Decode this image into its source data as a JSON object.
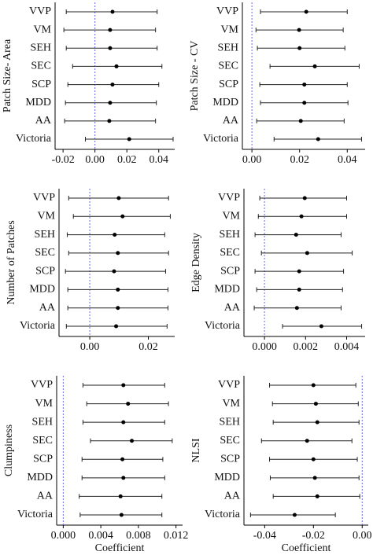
{
  "chart_data": [
    {
      "type": "dot",
      "ylabel": "Patch Size- Area",
      "categories": [
        "VVP",
        "VM",
        "SEH",
        "SEC",
        "SCP",
        "MDD",
        "AA",
        "Victoria"
      ],
      "values": [
        0.011,
        0.0095,
        0.0095,
        0.0135,
        0.011,
        0.0095,
        0.009,
        0.0215
      ],
      "lower": [
        -0.018,
        -0.0195,
        -0.018,
        -0.014,
        -0.017,
        -0.0185,
        -0.019,
        -0.006
      ],
      "upper": [
        0.039,
        0.038,
        0.039,
        0.042,
        0.04,
        0.0385,
        0.038,
        0.049
      ],
      "xlim": [
        -0.025,
        0.05
      ],
      "xticks": [
        -0.02,
        {
          "value": 0,
          "label": "0.00"
        },
        0.02,
        0.04
      ],
      "refline": 0,
      "refline_color": "#6a6ae0",
      "color": "#000000"
    },
    {
      "type": "dot",
      "ylabel": "Patch Size - CV",
      "categories": [
        "VVP",
        "VM",
        "SEH",
        "SEC",
        "SCP",
        "MDD",
        "AA",
        "Victoria"
      ],
      "values": [
        0.0228,
        0.0198,
        0.02,
        0.0264,
        0.022,
        0.022,
        0.0205,
        0.0278
      ],
      "lower": [
        0.0036,
        0.0017,
        0.0023,
        0.0076,
        0.0033,
        0.0036,
        0.002,
        0.0093
      ],
      "upper": [
        0.04,
        0.0383,
        0.039,
        0.045,
        0.04,
        0.0403,
        0.0387,
        0.046
      ],
      "xlim": [
        -0.004,
        0.0475
      ],
      "xticks": [
        {
          "value": 0,
          "label": "0.00"
        },
        0.02,
        0.04
      ],
      "refline": 0,
      "refline_color": "#6a6ae0",
      "color": "#000000"
    },
    {
      "type": "dot",
      "ylabel": "Number of Patches",
      "categories": [
        "VVP",
        "VM",
        "SEH",
        "SEC",
        "SCP",
        "MDD",
        "AA",
        "Victoria"
      ],
      "values": [
        0.0099,
        0.0112,
        0.0085,
        0.0096,
        0.0083,
        0.0096,
        0.0096,
        0.009
      ],
      "lower": [
        -0.0072,
        -0.0056,
        -0.0077,
        -0.0072,
        -0.0083,
        -0.0075,
        -0.0075,
        -0.008
      ],
      "upper": [
        0.0269,
        0.0275,
        0.0256,
        0.0269,
        0.0259,
        0.0267,
        0.0267,
        0.0264
      ],
      "xlim": [
        -0.0105,
        0.029
      ],
      "xticks": [
        {
          "value": 0,
          "label": "0.00"
        },
        0.02
      ],
      "refline": 0,
      "refline_color": "#6a6ae0",
      "color": "#000000"
    },
    {
      "type": "dot",
      "ylabel": "Edge Density",
      "categories": [
        "VVP",
        "VM",
        "SEH",
        "SEC",
        "SCP",
        "MDD",
        "AA",
        "Victoria"
      ],
      "values": [
        0.00196,
        0.0018,
        0.00154,
        0.00208,
        0.00169,
        0.00169,
        0.00158,
        0.00277
      ],
      "lower": [
        -0.00023,
        -0.0003,
        -0.00046,
        -0.00015,
        -0.00046,
        -0.00038,
        -0.0005,
        0.00088
      ],
      "upper": [
        0.004,
        0.004,
        0.00373,
        0.00427,
        0.00385,
        0.0038,
        0.00373,
        0.00473
      ],
      "xlim": [
        -0.001,
        0.0049
      ],
      "xticks": [
        {
          "value": 0,
          "label": "0.000"
        },
        0.002,
        0.004
      ],
      "refline": 0,
      "refline_color": "#6a6ae0",
      "color": "#000000"
    },
    {
      "type": "dot",
      "ylabel": "Clumpiness",
      "xlabel": "Coefficient",
      "categories": [
        "VVP",
        "VM",
        "SEH",
        "SEC",
        "SCP",
        "MDD",
        "AA",
        "Victoria"
      ],
      "values": [
        0.0064,
        0.0069,
        0.0064,
        0.0073,
        0.0063,
        0.0064,
        0.0061,
        0.0062
      ],
      "lower": [
        0.0021,
        0.0025,
        0.0021,
        0.0029,
        0.002,
        0.002,
        0.0017,
        0.0018
      ],
      "upper": [
        0.0108,
        0.0112,
        0.0108,
        0.0116,
        0.0106,
        0.0108,
        0.0105,
        0.0105
      ],
      "xlim": [
        -0.0007,
        0.0127
      ],
      "xticks": [
        {
          "value": 0,
          "label": "0.000"
        },
        0.004,
        0.008,
        0.012
      ],
      "refline": 0,
      "refline_color": "#6a6ae0",
      "color": "#000000"
    },
    {
      "type": "dot",
      "ylabel": "NLSI",
      "xlabel": "Coefficient",
      "categories": [
        "VVP",
        "VM",
        "SEH",
        "SEC",
        "SCP",
        "MDD",
        "AA",
        "Victoria"
      ],
      "values": [
        -0.02,
        -0.019,
        -0.0184,
        -0.0226,
        -0.02,
        -0.0194,
        -0.0184,
        -0.0277
      ],
      "lower": [
        -0.038,
        -0.0368,
        -0.0365,
        -0.0413,
        -0.038,
        -0.0377,
        -0.0365,
        -0.0458
      ],
      "upper": [
        -0.0026,
        -0.0016,
        -0.0013,
        -0.0042,
        -0.002,
        -0.0013,
        -0.001,
        -0.011
      ],
      "xlim": [
        -0.0485,
        0.0025
      ],
      "xticks": [
        -0.04,
        -0.02,
        {
          "value": 0,
          "label": "0.00"
        }
      ],
      "refline": 0,
      "refline_color": "#6a6ae0",
      "color": "#000000"
    }
  ]
}
